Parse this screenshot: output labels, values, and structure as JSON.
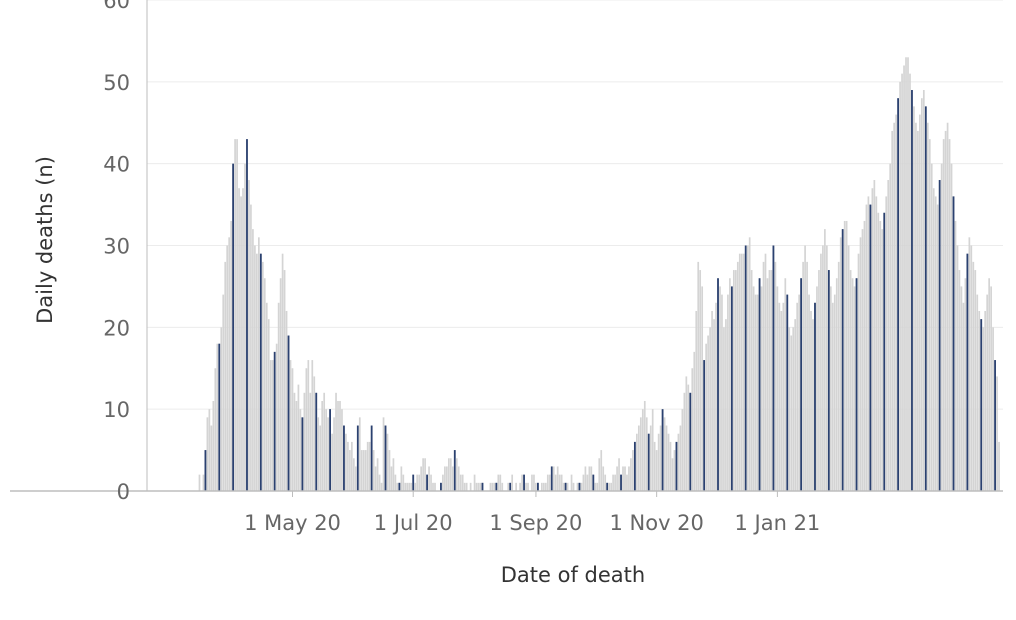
{
  "chart_data": {
    "type": "bar",
    "title": "",
    "xlabel": "Date of death",
    "ylabel": "Daily deaths (n)",
    "ylim": [
      0,
      60
    ],
    "y_ticks": [
      0,
      10,
      20,
      30,
      40,
      50,
      60
    ],
    "grid": true,
    "x_ticks": [
      {
        "date": "2020-05-01",
        "label": "1 May 20"
      },
      {
        "date": "2020-07-01",
        "label": "1 Jul 20"
      },
      {
        "date": "2020-09-01",
        "label": "1 Sep 20"
      },
      {
        "date": "2020-11-01",
        "label": "1 Nov 20"
      },
      {
        "date": "2021-01-01",
        "label": "1 Jan 21"
      }
    ],
    "x_range": [
      "2020-02-19",
      "2021-04-25"
    ],
    "start_date": "2020-03-15",
    "colors": {
      "daily": "#d4d4d4",
      "weekly_highlight": "#2b4170",
      "grid": "#ececec",
      "axis": "#bdbdbd"
    },
    "series": [
      {
        "values": [
          2,
          0,
          2,
          5,
          9,
          10,
          8,
          11,
          15,
          18,
          18,
          20,
          24,
          28,
          30,
          31,
          33,
          40,
          43,
          43,
          37,
          36,
          37,
          40,
          43,
          38,
          35,
          32,
          30,
          29,
          31,
          29,
          28,
          26,
          23,
          21,
          16,
          16,
          17,
          18,
          23,
          26,
          29,
          27,
          22,
          19,
          16,
          15,
          12,
          11,
          13,
          10,
          9,
          12,
          15,
          16,
          12,
          16,
          14,
          12,
          9,
          8,
          11,
          12,
          10,
          9,
          10,
          7,
          9,
          12,
          11,
          11,
          10,
          8,
          7,
          6,
          5,
          6,
          4,
          3,
          8,
          9,
          5,
          5,
          5,
          6,
          6,
          8,
          5,
          3,
          4,
          2,
          1,
          9,
          8,
          7,
          5,
          3,
          4,
          2,
          1,
          1,
          3,
          2,
          1,
          1,
          1,
          1,
          2,
          1,
          2,
          2,
          3,
          4,
          4,
          2,
          3,
          2,
          1,
          1,
          0,
          0,
          1,
          2,
          3,
          3,
          4,
          4,
          3,
          5,
          4,
          3,
          2,
          2,
          1,
          1,
          0,
          1,
          0,
          2,
          1,
          1,
          1,
          1,
          0,
          0,
          0,
          1,
          1,
          1,
          1,
          2,
          2,
          1,
          0,
          0,
          1,
          1,
          2,
          0,
          1,
          0,
          1,
          2,
          2,
          1,
          1,
          0,
          2,
          2,
          1,
          1,
          0,
          1,
          1,
          1,
          2,
          2,
          3,
          3,
          2,
          3,
          2,
          2,
          1,
          1,
          1,
          0,
          2,
          1,
          0,
          1,
          1,
          1,
          2,
          3,
          2,
          3,
          3,
          2,
          1,
          1,
          4,
          5,
          3,
          2,
          1,
          1,
          1,
          2,
          2,
          3,
          4,
          2,
          3,
          3,
          2,
          3,
          4,
          5,
          6,
          7,
          8,
          9,
          10,
          11,
          9,
          7,
          8,
          10,
          6,
          5,
          7,
          8,
          10,
          9,
          8,
          7,
          6,
          4,
          5,
          6,
          7,
          8,
          10,
          12,
          14,
          13,
          12,
          15,
          17,
          22,
          28,
          27,
          25,
          16,
          18,
          19,
          20,
          22,
          21,
          23,
          26,
          25,
          24,
          20,
          21,
          24,
          26,
          25,
          27,
          27,
          28,
          29,
          29,
          29,
          30,
          30,
          31,
          27,
          25,
          24,
          24,
          26,
          25,
          28,
          29,
          26,
          27,
          27,
          30,
          28,
          25,
          23,
          22,
          23,
          26,
          24,
          20,
          19,
          20,
          21,
          23,
          24,
          26,
          28,
          30,
          28,
          24,
          22,
          21,
          23,
          25,
          27,
          29,
          30,
          32,
          30,
          27,
          25,
          23,
          24,
          26,
          28,
          31,
          32,
          33,
          33,
          30,
          27,
          26,
          25,
          26,
          29,
          31,
          32,
          33,
          35,
          36,
          35,
          37,
          38,
          36,
          34,
          33,
          32,
          34,
          36,
          38,
          40,
          44,
          45,
          46,
          48,
          50,
          51,
          52,
          53,
          53,
          51,
          49,
          47,
          45,
          44,
          46,
          48,
          49,
          47,
          45,
          43,
          40,
          37,
          36,
          35,
          38,
          40,
          43,
          44,
          45,
          43,
          40,
          36,
          33,
          30,
          27,
          25,
          23,
          26,
          29,
          31,
          30,
          28,
          27,
          24,
          22,
          21,
          20,
          22,
          24,
          26,
          25,
          20,
          16,
          14,
          6,
          0
        ]
      }
    ]
  }
}
